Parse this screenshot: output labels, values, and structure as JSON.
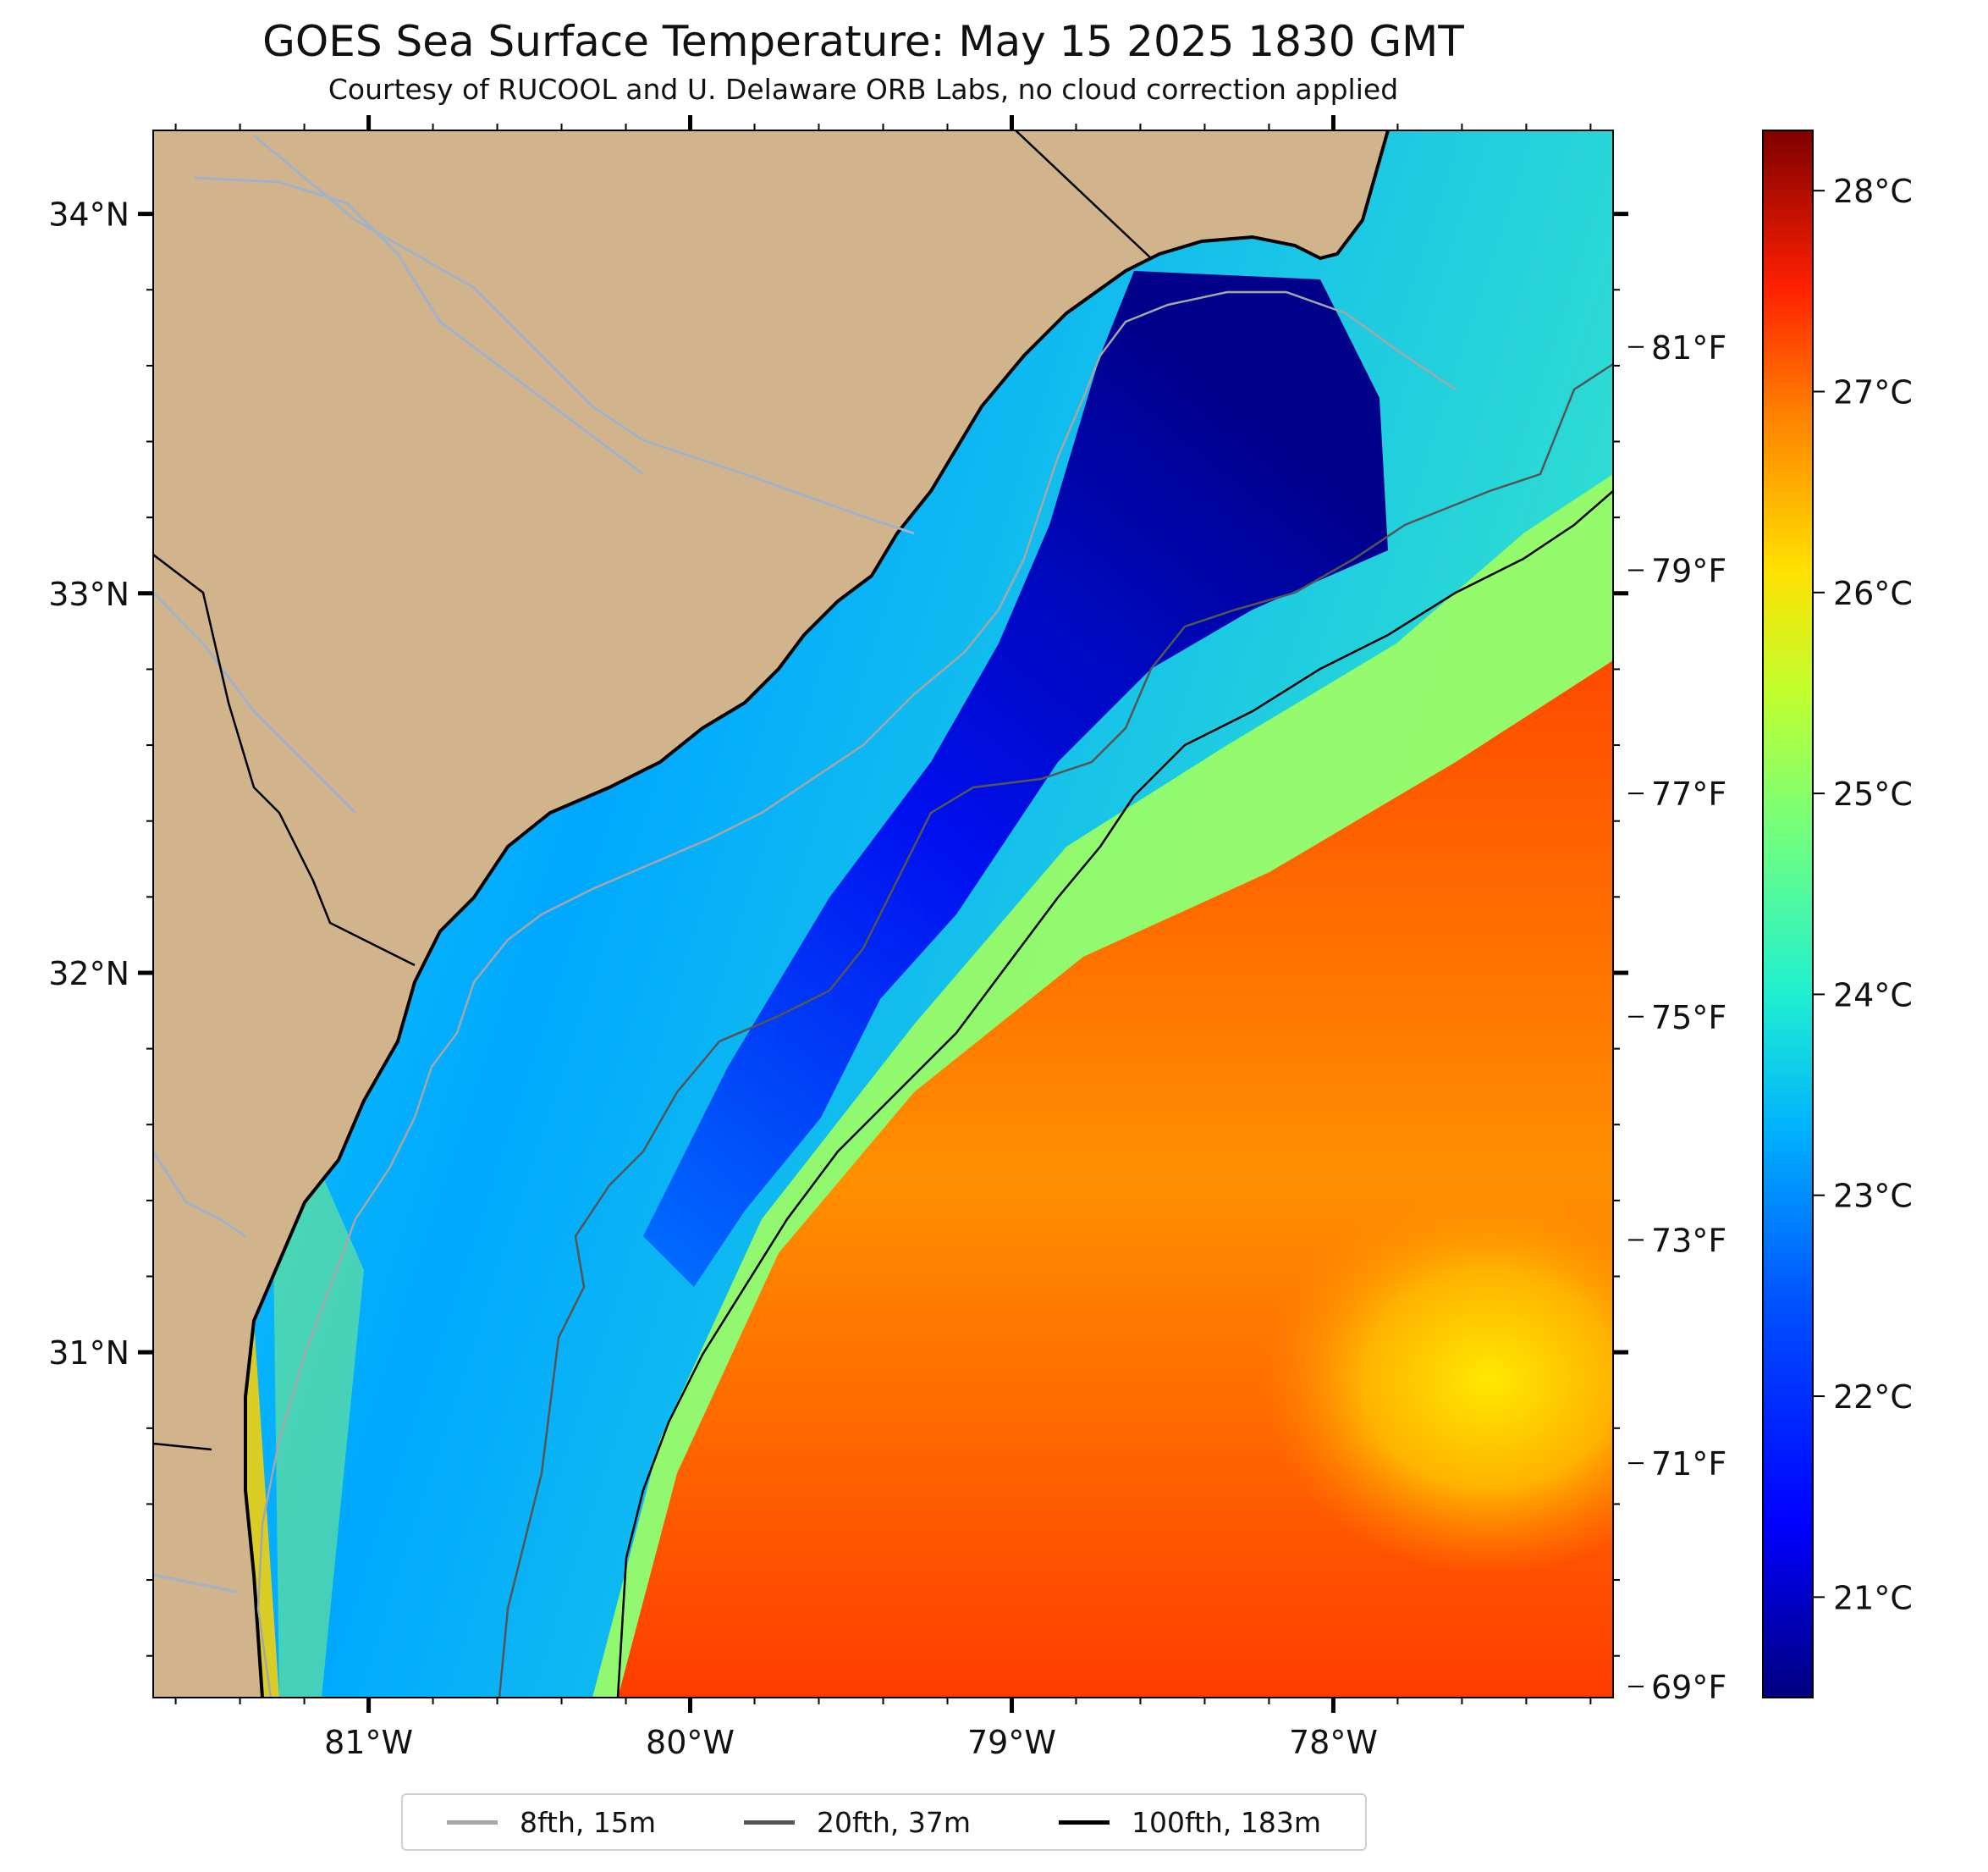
{
  "title": "GOES Sea Surface Temperature: May 15 2025 1830 GMT",
  "subtitle": "Courtesy of RUCOOL and U. Delaware ORB Labs, no cloud correction applied",
  "colors": {
    "land": "#d2b48c",
    "coastline": "#000000",
    "rivers": "#9fb2c9"
  },
  "map": {
    "lon_range": [
      -81.67,
      -77.13
    ],
    "lat_range": [
      30.09,
      34.22
    ],
    "lat_ticks": [
      "34°N",
      "33°N",
      "32°N",
      "31°N"
    ],
    "lon_ticks": [
      "81°W",
      "80°W",
      "79°W",
      "78°W"
    ]
  },
  "fahrenheit_axis": [
    "81°F",
    "79°F",
    "77°F",
    "75°F",
    "73°F",
    "71°F",
    "69°F"
  ],
  "colorbar": {
    "range_c": [
      20.5,
      28.3
    ],
    "ticks": [
      "28°C",
      "27°C",
      "26°C",
      "25°C",
      "24°C",
      "23°C",
      "22°C",
      "21°C"
    ]
  },
  "legend": [
    {
      "label": "8fth, 15m",
      "color": "#a6a6a6"
    },
    {
      "label": "20fth, 37m",
      "color": "#555555"
    },
    {
      "label": "100fth, 183m",
      "color": "#000000"
    }
  ]
}
